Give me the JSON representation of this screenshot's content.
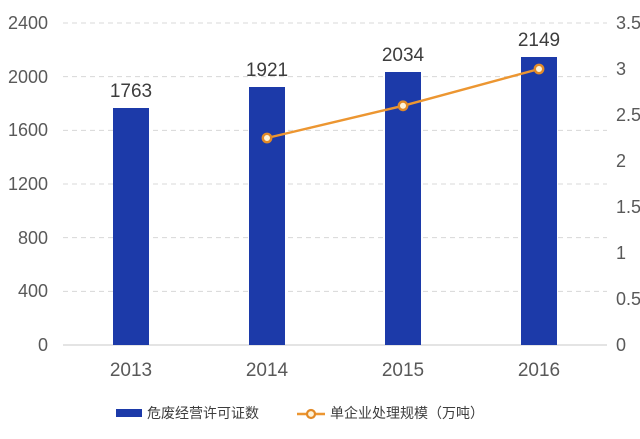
{
  "chart_data": {
    "type": "combo",
    "categories": [
      "2013",
      "2014",
      "2015",
      "2016"
    ],
    "series": [
      {
        "name": "危废经营许可证数",
        "type": "bar",
        "axis": "left",
        "color": "#1c3aa9",
        "values": [
          1763,
          1921,
          2034,
          2149
        ],
        "data_labels": [
          "1763",
          "1921",
          "2034",
          "2149"
        ]
      },
      {
        "name": "单企业处理规模（万吨）",
        "type": "line",
        "axis": "right",
        "color": "#ec9631",
        "values": [
          null,
          2.25,
          2.6,
          3.0
        ],
        "marker": "circle"
      }
    ],
    "axes": {
      "left": {
        "min": 0,
        "max": 2400,
        "step": 400,
        "ticks": [
          "0",
          "400",
          "800",
          "1200",
          "1600",
          "2000",
          "2400"
        ]
      },
      "right": {
        "min": 0,
        "max": 3.5,
        "step": 0.5,
        "ticks": [
          "0",
          "0.5",
          "1",
          "1.5",
          "2",
          "2.5",
          "3",
          "3.5"
        ]
      }
    },
    "title": "",
    "xlabel": "",
    "ylabel": "",
    "grid": "horizontal-dashed",
    "legend_position": "bottom"
  },
  "colors": {
    "bar": "#1c3aa9",
    "line": "#ec9631",
    "marker_ring": "#e28a28",
    "marker_fill": "#fdf3da",
    "grid": "#d8d8d8",
    "axis_line": "#c8c8c8",
    "axis_text": "#595959",
    "value_text": "#3d3d3d",
    "background": "#ffffff"
  }
}
